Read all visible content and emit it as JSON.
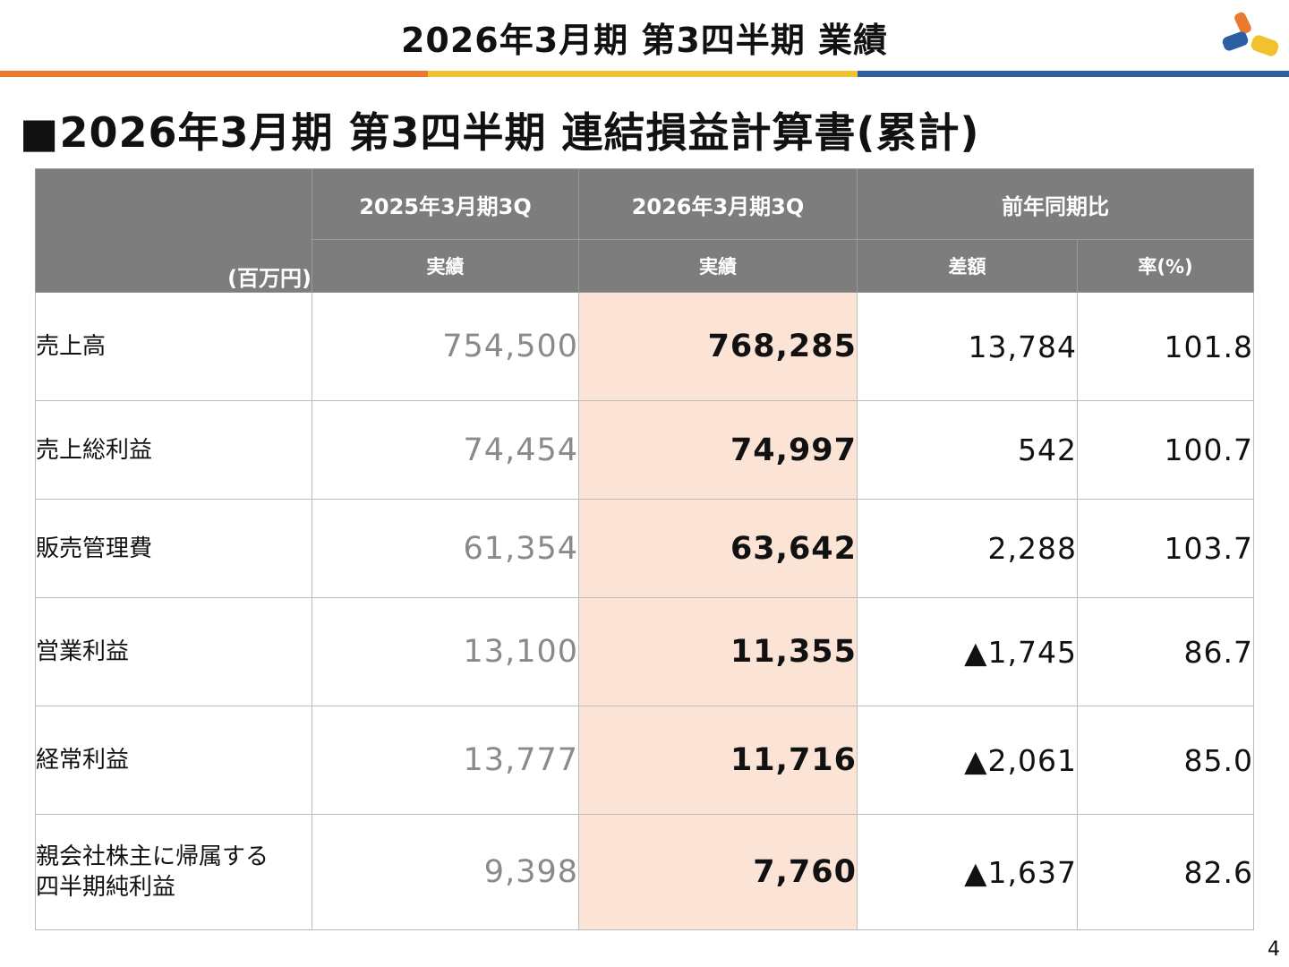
{
  "header": {
    "title": "2026年3月期 第3四半期 業績"
  },
  "section": {
    "title": "■2026年3月期 第3四半期 連結損益計算書(累計)"
  },
  "table": {
    "unit_label": "(百万円)",
    "col_groups": [
      "2025年3月期3Q",
      "2026年3月期3Q",
      "前年同期比"
    ],
    "sub_headers": [
      "実績",
      "実績",
      "差額",
      "率(%)"
    ],
    "rows": [
      {
        "label": "売上高",
        "prev": "754,500",
        "cur": "768,285",
        "diff": "13,784",
        "rate": "101.8"
      },
      {
        "label": "売上総利益",
        "prev": "74,454",
        "cur": "74,997",
        "diff": "542",
        "rate": "100.7"
      },
      {
        "label": "販売管理費",
        "prev": "61,354",
        "cur": "63,642",
        "diff": "2,288",
        "rate": "103.7"
      },
      {
        "label": "営業利益",
        "prev": "13,100",
        "cur": "11,355",
        "diff": "▲1,745",
        "rate": "86.7"
      },
      {
        "label": "経常利益",
        "prev": "13,777",
        "cur": "11,716",
        "diff": "▲2,061",
        "rate": "85.0"
      },
      {
        "label": "親会社株主に帰属する",
        "label2": "四半期純利益",
        "prev": "9,398",
        "cur": "7,760",
        "diff": "▲1,637",
        "rate": "82.6"
      }
    ]
  },
  "page_number": "4",
  "colors": {
    "stripe_orange": "#e8792f",
    "stripe_yellow": "#f2c12e",
    "stripe_blue": "#2a5fa3",
    "header_gray": "#7d7d7d",
    "highlight": "#fbe4d6"
  },
  "logo": {
    "icon": "company-logo-icon"
  }
}
